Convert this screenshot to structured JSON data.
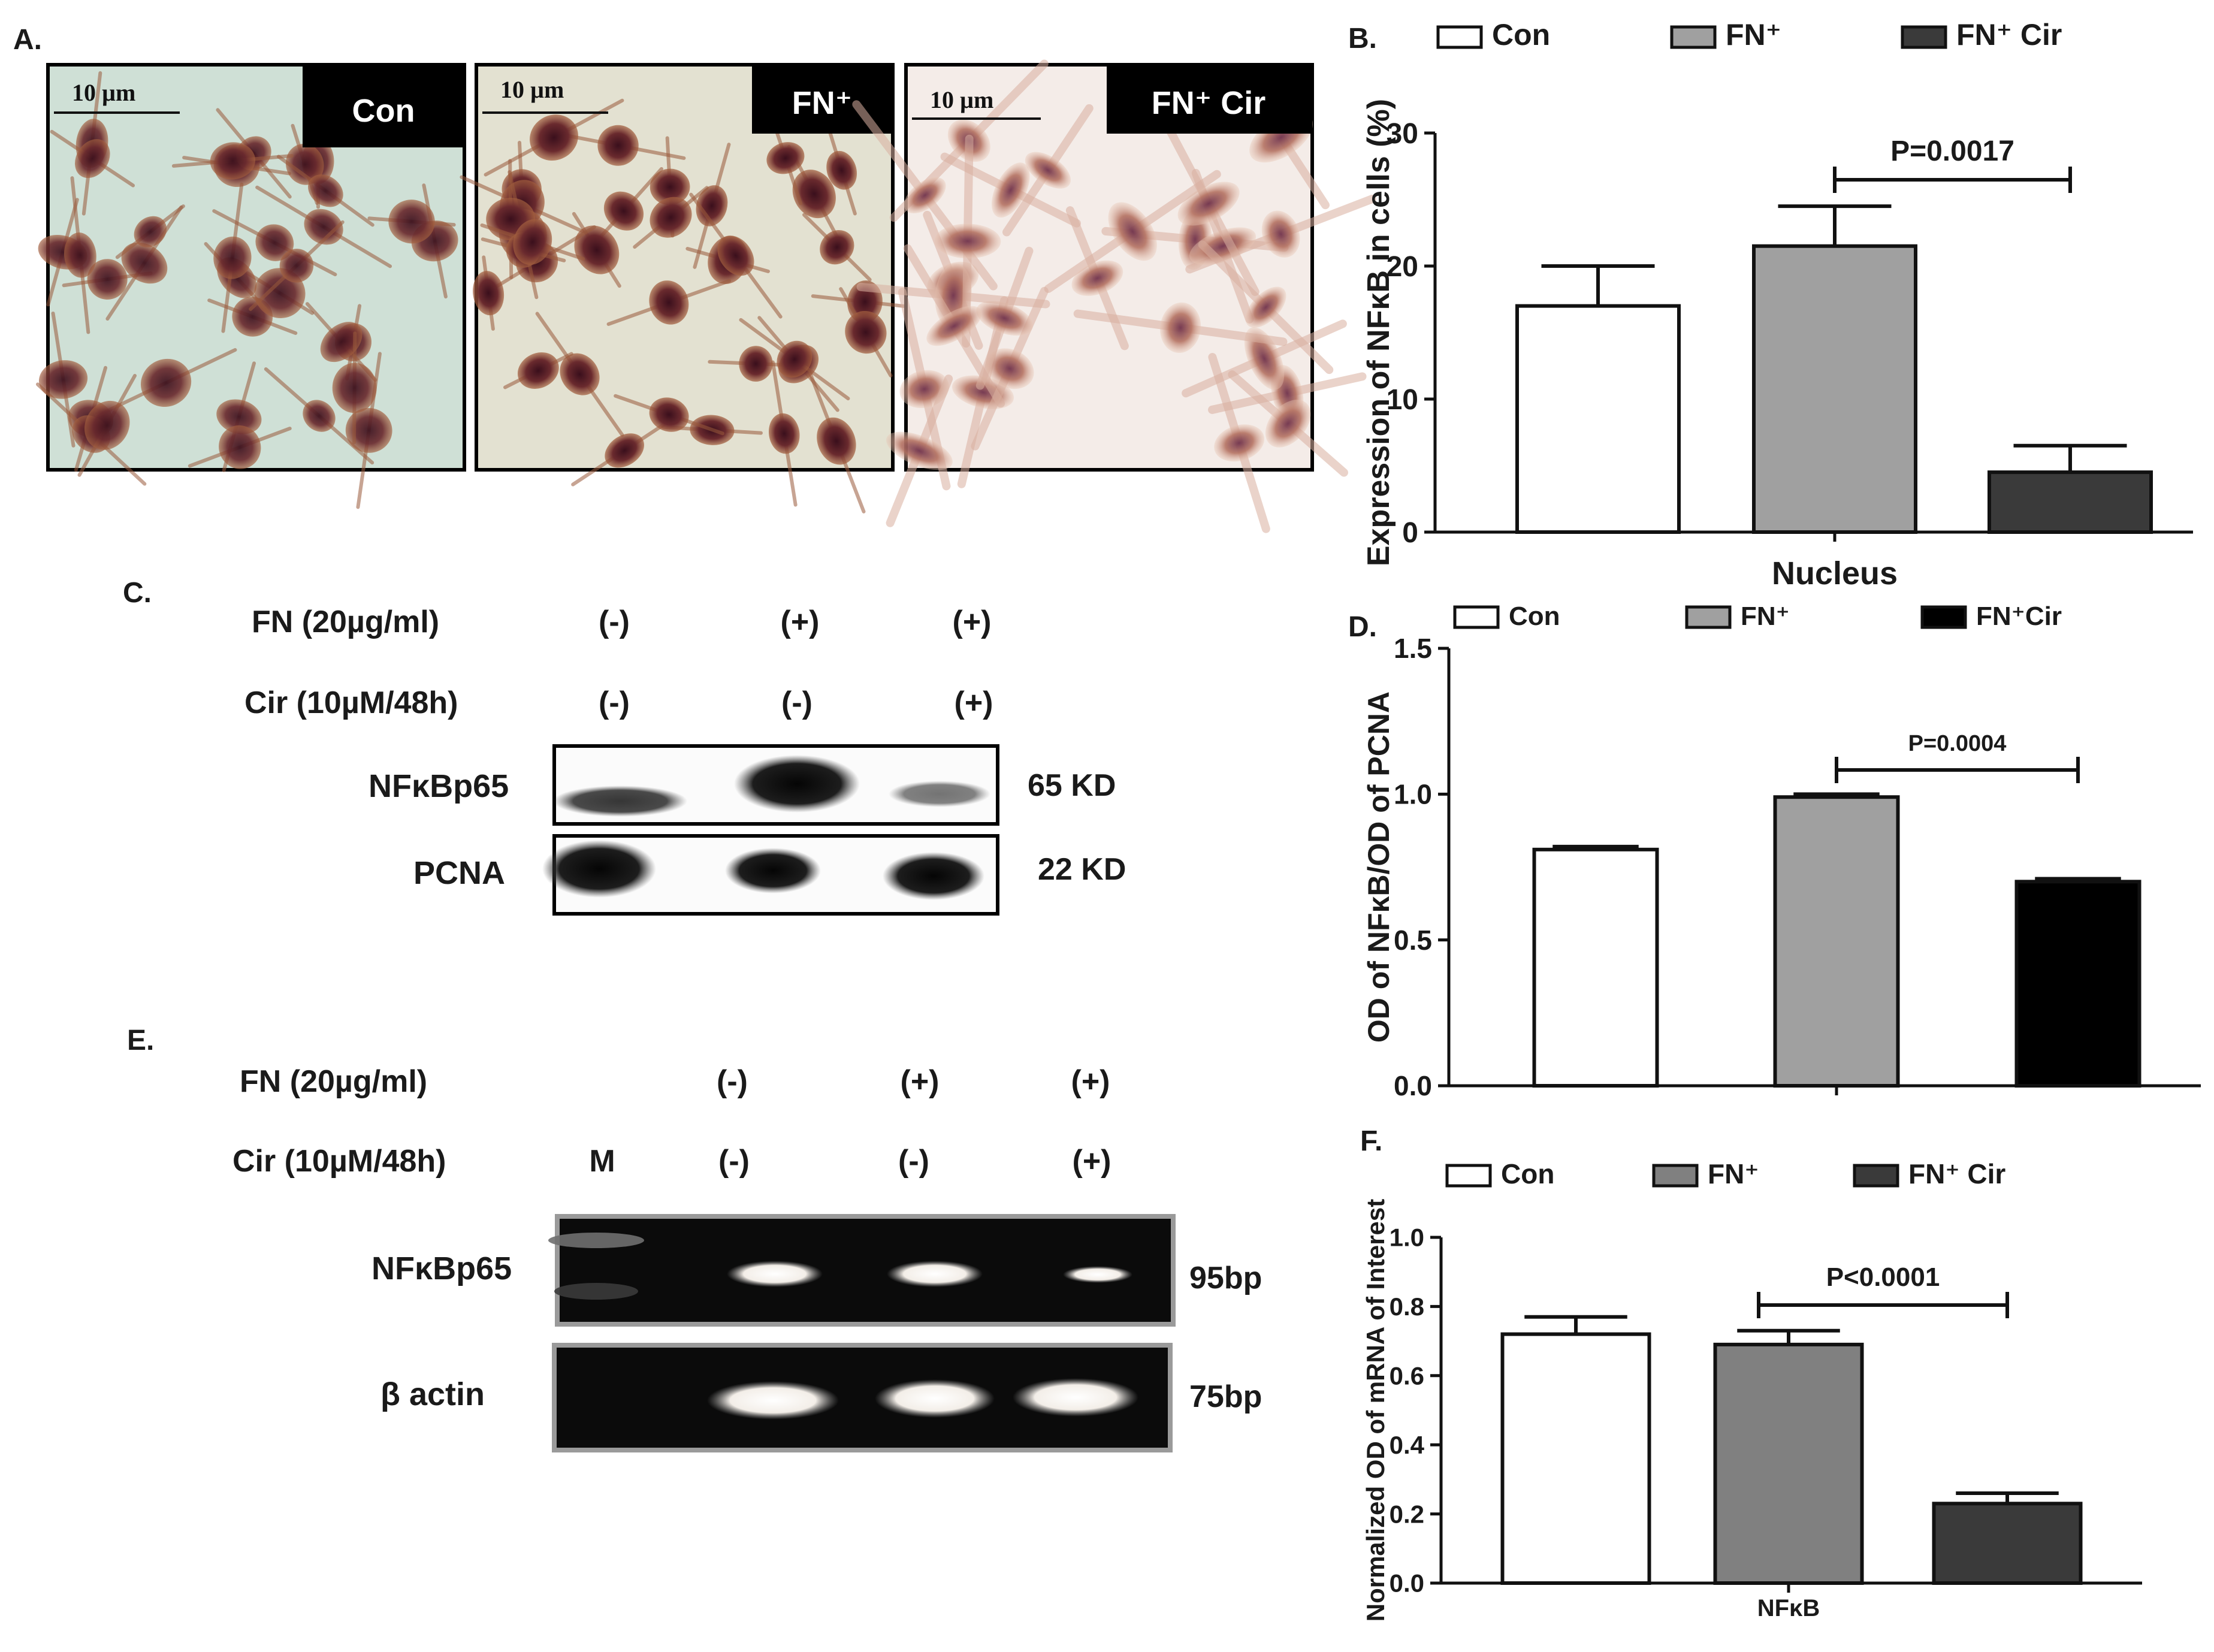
{
  "panel_letters": {
    "a": "A.",
    "b": "B.",
    "c": "C.",
    "d": "D.",
    "e": "E.",
    "f": "F."
  },
  "panel_a": {
    "scale_bar_text": "10 µm",
    "images": [
      {
        "label": "Con",
        "stain": "dense-brown"
      },
      {
        "label": "FN⁺",
        "stain": "very-dense-brown"
      },
      {
        "label": "FN⁺ Cir",
        "stain": "faint-pink"
      }
    ]
  },
  "panel_c": {
    "row_labels": [
      "FN (20µg/ml)",
      "Cir (10µM/48h)"
    ],
    "fn_signs": [
      "(-)",
      "(+)",
      "(+)"
    ],
    "cir_signs": [
      "(-)",
      "(-)",
      "(+)"
    ],
    "blots": [
      {
        "name": "NFκBp65",
        "size": "65 KD",
        "intensities": [
          0.55,
          0.95,
          0.35
        ]
      },
      {
        "name": "PCNA",
        "size": "22 KD",
        "intensities": [
          0.9,
          0.85,
          0.85
        ]
      }
    ]
  },
  "panel_e": {
    "row_labels": [
      "FN (20µg/ml)",
      "Cir (10µM/48h)"
    ],
    "marker_label": "M",
    "fn_signs": [
      "(-)",
      "(+)",
      "(+)"
    ],
    "cir_signs": [
      "(-)",
      "(-)",
      "(+)"
    ],
    "gels": [
      {
        "name": "NFκBp65",
        "size": "95bp",
        "intensities": [
          0.85,
          0.85,
          0.6
        ]
      },
      {
        "name": "β actin",
        "size": "75bp",
        "intensities": [
          1.0,
          1.0,
          1.0
        ]
      }
    ]
  },
  "colors": {
    "con": "#ffffff",
    "fn": "#a0a0a0",
    "fn_cir": "#3a3a3a",
    "fn_cir_d": "#000000",
    "fn_f": "#808080"
  },
  "chart_data": [
    {
      "panel": "B",
      "type": "bar",
      "categories": [
        "Con",
        "FN+",
        "FN+ Cir"
      ],
      "legend": [
        "Con",
        "FN⁺",
        "FN⁺ Cir"
      ],
      "values": [
        17,
        21.5,
        4.5
      ],
      "errors": [
        3,
        3,
        2
      ],
      "xlabel": "Nucleus",
      "ylabel": "Expression of NFκB in cells (%)",
      "ylim": [
        0,
        30
      ],
      "yticks": [
        "0",
        "10",
        "20",
        "30"
      ],
      "annotation": "P=0.0017",
      "legend_position": "top"
    },
    {
      "panel": "D",
      "type": "bar",
      "categories": [
        "Con",
        "FN+",
        "FN+Cir"
      ],
      "legend": [
        "Con",
        "FN⁺",
        "FN⁺Cir"
      ],
      "values": [
        0.81,
        0.99,
        0.7
      ],
      "errors": [
        0.01,
        0.01,
        0.01
      ],
      "xlabel": "",
      "ylabel": "OD of NFκB/OD of PCNA",
      "ylim": [
        0,
        1.5
      ],
      "yticks": [
        "0.0",
        "0.5",
        "1.0",
        "1.5"
      ],
      "annotation": "P=0.0004",
      "legend_position": "top"
    },
    {
      "panel": "F",
      "type": "bar",
      "categories": [
        "Con",
        "FN+",
        "FN+ Cir"
      ],
      "legend": [
        "Con",
        "FN⁺",
        "FN⁺ Cir"
      ],
      "values": [
        0.72,
        0.69,
        0.23
      ],
      "errors": [
        0.05,
        0.04,
        0.03
      ],
      "xlabel": "NFκB",
      "ylabel": "Normalized OD of mRNA of Interest",
      "ylim": [
        0,
        1.0
      ],
      "yticks": [
        "0.0",
        "0.2",
        "0.4",
        "0.6",
        "0.8",
        "1.0"
      ],
      "annotation": "P<0.0001",
      "legend_position": "top"
    }
  ]
}
